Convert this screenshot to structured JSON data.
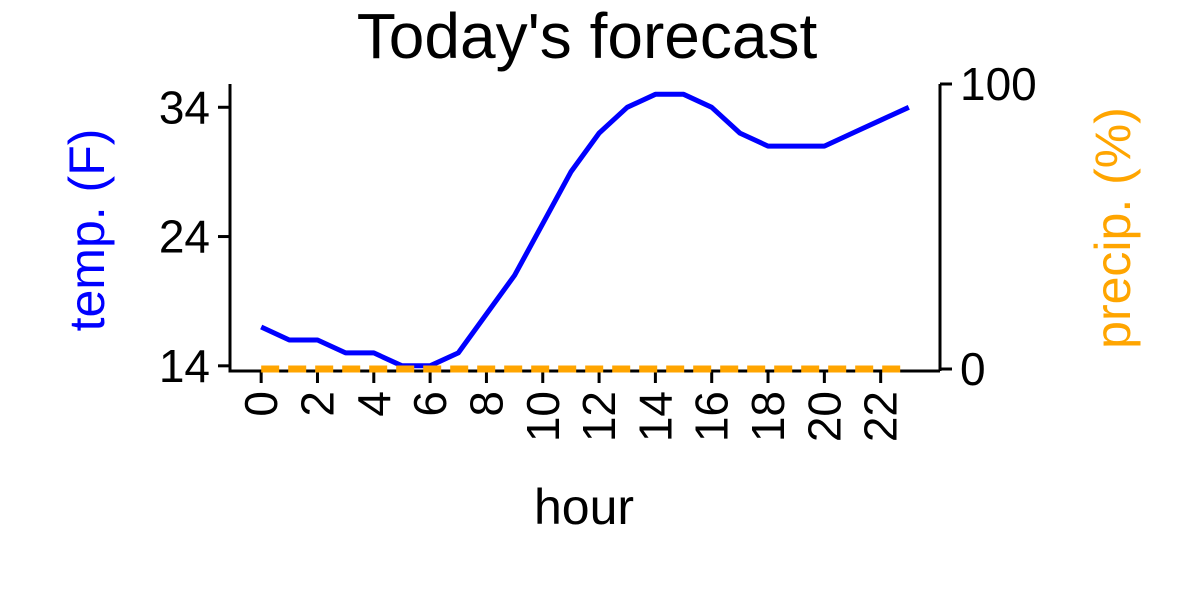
{
  "chart_data": {
    "type": "line",
    "title": "Today's forecast",
    "xlabel": "hour",
    "ylabel_left": "temp. (F)",
    "ylabel_right": "precip. (%)",
    "xlim": [
      -1,
      24
    ],
    "ylim_left": [
      13.6,
      35.8
    ],
    "ylim_right": [
      0,
      100
    ],
    "x_ticks": [
      0,
      2,
      4,
      6,
      8,
      10,
      12,
      14,
      16,
      18,
      20,
      22
    ],
    "y_left_ticks": [
      14,
      24,
      34
    ],
    "y_right_ticks": [
      0,
      100
    ],
    "grid": false,
    "colors": {
      "temperature": "#0000ff",
      "precipitation": "#ffa500",
      "axes": "#000000"
    },
    "x": [
      0,
      1,
      2,
      3,
      4,
      5,
      6,
      7,
      8,
      9,
      10,
      11,
      12,
      13,
      14,
      15,
      16,
      17,
      18,
      19,
      20,
      21,
      22,
      23
    ],
    "series": [
      {
        "axis": "left",
        "style": "solid",
        "values": [
          17,
          16,
          16,
          15,
          15,
          14,
          14,
          15,
          18,
          21,
          25,
          29,
          32,
          34,
          35,
          35,
          34,
          32,
          31,
          31,
          31,
          32,
          33,
          34
        ]
      },
      {
        "axis": "right",
        "style": "dashed",
        "values": [
          0,
          0,
          0,
          0,
          0,
          0,
          0,
          0,
          0,
          0,
          0,
          0,
          0,
          0,
          0,
          0,
          0,
          0,
          0,
          0,
          0,
          0,
          0,
          0
        ]
      }
    ]
  }
}
